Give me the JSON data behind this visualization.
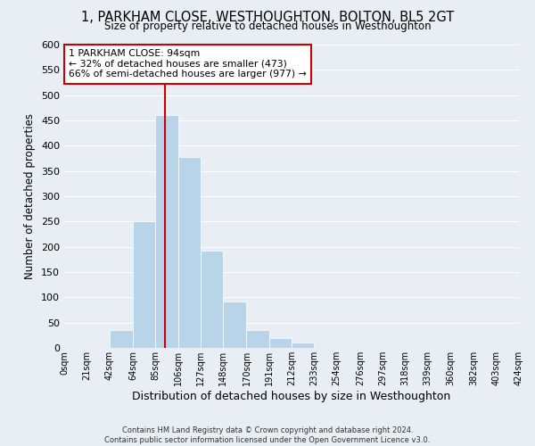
{
  "title": "1, PARKHAM CLOSE, WESTHOUGHTON, BOLTON, BL5 2GT",
  "subtitle": "Size of property relative to detached houses in Westhoughton",
  "xlabel": "Distribution of detached houses by size in Westhoughton",
  "ylabel": "Number of detached properties",
  "bar_color": "#b8d4e8",
  "background_color": "#e8eef4",
  "grid_color": "#ffffff",
  "bin_edges": [
    0,
    21,
    42,
    64,
    85,
    106,
    127,
    148,
    170,
    191,
    212,
    233,
    254,
    276,
    297,
    318,
    339,
    360,
    382,
    403,
    424
  ],
  "bin_labels": [
    "0sqm",
    "21sqm",
    "42sqm",
    "64sqm",
    "85sqm",
    "106sqm",
    "127sqm",
    "148sqm",
    "170sqm",
    "191sqm",
    "212sqm",
    "233sqm",
    "254sqm",
    "276sqm",
    "297sqm",
    "318sqm",
    "339sqm",
    "360sqm",
    "382sqm",
    "403sqm",
    "424sqm"
  ],
  "counts": [
    0,
    0,
    35,
    250,
    460,
    378,
    192,
    92,
    35,
    20,
    10,
    0,
    0,
    0,
    0,
    0,
    0,
    0,
    0,
    0
  ],
  "ylim": [
    0,
    600
  ],
  "yticks": [
    0,
    50,
    100,
    150,
    200,
    250,
    300,
    350,
    400,
    450,
    500,
    550,
    600
  ],
  "vline_x": 94,
  "vline_color": "#cc0000",
  "annotation_line1": "1 PARKHAM CLOSE: 94sqm",
  "annotation_line2": "← 32% of detached houses are smaller (473)",
  "annotation_line3": "66% of semi-detached houses are larger (977) →",
  "annotation_box_color": "#ffffff",
  "annotation_box_edge": "#cc0000",
  "footer_line1": "Contains HM Land Registry data © Crown copyright and database right 2024.",
  "footer_line2": "Contains public sector information licensed under the Open Government Licence v3.0."
}
